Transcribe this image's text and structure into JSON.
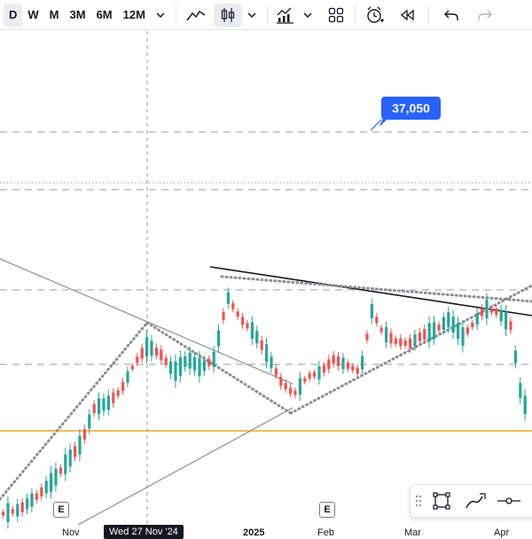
{
  "toolbar": {
    "timeframes": [
      "D",
      "W",
      "M",
      "3M",
      "6M",
      "12M"
    ],
    "active_timeframe": "D"
  },
  "icons": {
    "timeframe_dropdown": "chevron-down-icon",
    "line_chart": "line-chart-icon",
    "candles": "candlestick-icon",
    "chart_type_dropdown": "chevron-down-icon",
    "indicators": "indicators-icon",
    "indicators_dropdown": "chevron-down-icon",
    "layouts": "layout-grid-icon",
    "alert": "alarm-plus-icon",
    "replay": "replay-icon",
    "undo": "undo-icon",
    "redo": "redo-icon"
  },
  "chart": {
    "price_label": "37,050",
    "earnings_marker": "E",
    "x_labels": [
      "Nov",
      "Wed 27 Nov '24",
      "2025",
      "Feb",
      "Mar",
      "Apr"
    ],
    "colors": {
      "up": "#26a69a",
      "down": "#ef5350",
      "price_label_bg": "#2962ff",
      "support_line": "#f5a623",
      "dashed_level": "#9598a1",
      "dotted_level": "#26a69a"
    }
  },
  "floating_toolbar": {
    "icons": [
      "drag-handle-icon",
      "rectangle-tool-icon",
      "brush-tool-icon",
      "line-tool-icon"
    ]
  }
}
